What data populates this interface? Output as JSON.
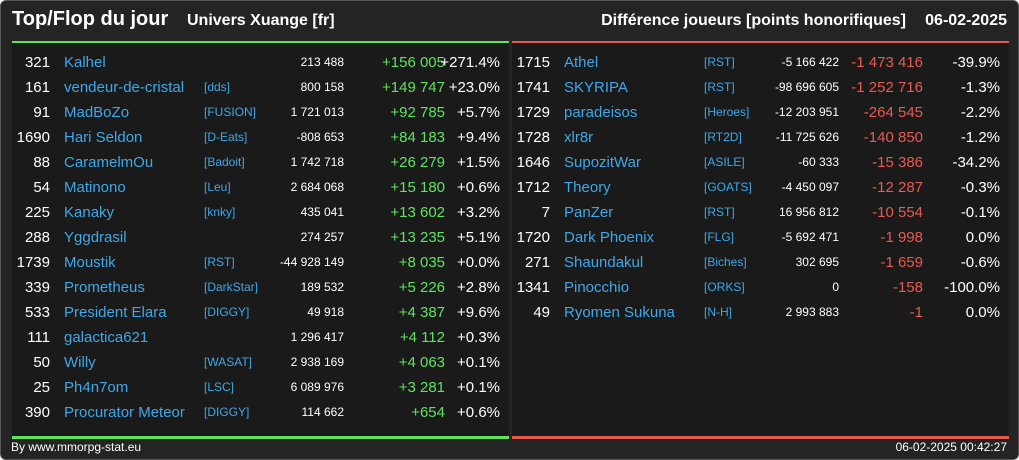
{
  "header": {
    "title": "Top/Flop du jour",
    "subtitle": "Univers Xuange [fr]",
    "metric": "Différence joueurs [points honorifiques]",
    "date": "06-02-2025"
  },
  "colors": {
    "background": "#242424",
    "panel": "#1a1a1a",
    "top_accent": "#5fe35f",
    "flop_accent": "#e85a50",
    "link": "#3fa8e8"
  },
  "top": [
    {
      "rank": "321",
      "name": "Kalhel",
      "tag": "",
      "points": "213 488",
      "diff": "+156 005",
      "pct": "+271.4%"
    },
    {
      "rank": "161",
      "name": "vendeur-de-cristal",
      "tag": "[dds]",
      "points": "800 158",
      "diff": "+149 747",
      "pct": "+23.0%"
    },
    {
      "rank": "91",
      "name": "MadBoZo",
      "tag": "[FUSION]",
      "points": "1 721 013",
      "diff": "+92 785",
      "pct": "+5.7%"
    },
    {
      "rank": "1690",
      "name": "Hari Seldon",
      "tag": "[D-Eats]",
      "points": "-808 653",
      "diff": "+84 183",
      "pct": "+9.4%"
    },
    {
      "rank": "88",
      "name": "CaramelmOu",
      "tag": "[Badoit]",
      "points": "1 742 718",
      "diff": "+26 279",
      "pct": "+1.5%"
    },
    {
      "rank": "54",
      "name": "Matinono",
      "tag": "[Leu]",
      "points": "2 684 068",
      "diff": "+15 180",
      "pct": "+0.6%"
    },
    {
      "rank": "225",
      "name": "Kanaky",
      "tag": "[knky]",
      "points": "435 041",
      "diff": "+13 602",
      "pct": "+3.2%"
    },
    {
      "rank": "288",
      "name": "Yggdrasil",
      "tag": "",
      "points": "274 257",
      "diff": "+13 235",
      "pct": "+5.1%"
    },
    {
      "rank": "1739",
      "name": "Moustik",
      "tag": "[RST]",
      "points": "-44 928 149",
      "diff": "+8 035",
      "pct": "+0.0%"
    },
    {
      "rank": "339",
      "name": "Prometheus",
      "tag": "[DarkStar]",
      "points": "189 532",
      "diff": "+5 226",
      "pct": "+2.8%"
    },
    {
      "rank": "533",
      "name": "President Elara",
      "tag": "[DIGGY]",
      "points": "49 918",
      "diff": "+4 387",
      "pct": "+9.6%"
    },
    {
      "rank": "111",
      "name": "galactica621",
      "tag": "",
      "points": "1 296 417",
      "diff": "+4 112",
      "pct": "+0.3%"
    },
    {
      "rank": "50",
      "name": "Willy",
      "tag": "[WASAT]",
      "points": "2 938 169",
      "diff": "+4 063",
      "pct": "+0.1%"
    },
    {
      "rank": "25",
      "name": "Ph4n7om",
      "tag": "[LSC]",
      "points": "6 089 976",
      "diff": "+3 281",
      "pct": "+0.1%"
    },
    {
      "rank": "390",
      "name": "Procurator Meteor",
      "tag": "[DIGGY]",
      "points": "114 662",
      "diff": "+654",
      "pct": "+0.6%"
    }
  ],
  "flop": [
    {
      "rank": "1715",
      "name": "Athel",
      "tag": "[RST]",
      "points": "-5 166 422",
      "diff": "-1 473 416",
      "pct": "-39.9%"
    },
    {
      "rank": "1741",
      "name": "SKYRIPA",
      "tag": "[RST]",
      "points": "-98 696 605",
      "diff": "-1 252 716",
      "pct": "-1.3%"
    },
    {
      "rank": "1729",
      "name": "paradeisos",
      "tag": "[Heroes]",
      "points": "-12 203 951",
      "diff": "-264 545",
      "pct": "-2.2%"
    },
    {
      "rank": "1728",
      "name": "xlr8r",
      "tag": "[RT2D]",
      "points": "-11 725 626",
      "diff": "-140 850",
      "pct": "-1.2%"
    },
    {
      "rank": "1646",
      "name": "SupozitWar",
      "tag": "[ASILE]",
      "points": "-60 333",
      "diff": "-15 386",
      "pct": "-34.2%"
    },
    {
      "rank": "1712",
      "name": "Theory",
      "tag": "[GOATS]",
      "points": "-4 450 097",
      "diff": "-12 287",
      "pct": "-0.3%"
    },
    {
      "rank": "7",
      "name": "PanZer",
      "tag": "[RST]",
      "points": "16 956 812",
      "diff": "-10 554",
      "pct": "-0.1%"
    },
    {
      "rank": "1720",
      "name": "Dark Phoenix",
      "tag": "[FLG]",
      "points": "-5 692 471",
      "diff": "-1 998",
      "pct": "0.0%"
    },
    {
      "rank": "271",
      "name": "Shaundakul",
      "tag": "[Biches]",
      "points": "302 695",
      "diff": "-1 659",
      "pct": "-0.6%"
    },
    {
      "rank": "1341",
      "name": "Pinocchio",
      "tag": "[ORKS]",
      "points": "0",
      "diff": "-158",
      "pct": "-100.0%"
    },
    {
      "rank": "49",
      "name": "Ryomen Sukuna",
      "tag": "[N-H]",
      "points": "2 993 883",
      "diff": "-1",
      "pct": "0.0%"
    }
  ],
  "footer": {
    "source": "By www.mmorpg-stat.eu",
    "timestamp": "06-02-2025 00:42:27"
  }
}
